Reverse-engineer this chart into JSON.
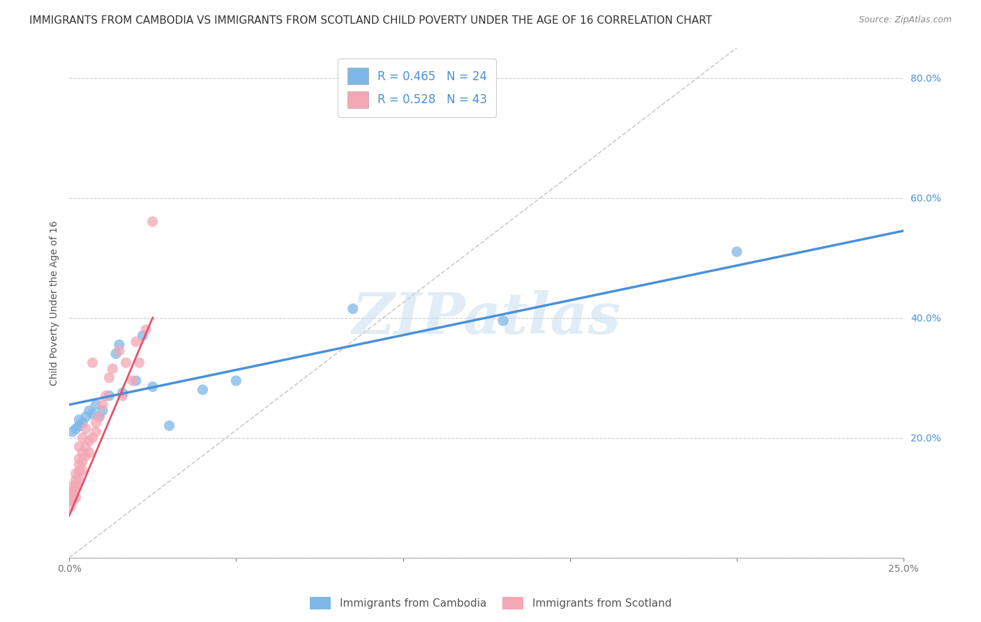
{
  "title": "IMMIGRANTS FROM CAMBODIA VS IMMIGRANTS FROM SCOTLAND CHILD POVERTY UNDER THE AGE OF 16 CORRELATION CHART",
  "source": "Source: ZipAtlas.com",
  "ylabel": "Child Poverty Under the Age of 16",
  "xlim": [
    0.0,
    0.25
  ],
  "ylim": [
    0.0,
    0.85
  ],
  "x_ticks": [
    0.0,
    0.05,
    0.1,
    0.15,
    0.2,
    0.25
  ],
  "x_tick_labels": [
    "0.0%",
    "",
    "",
    "",
    "",
    "25.0%"
  ],
  "y_ticks": [
    0.0,
    0.2,
    0.4,
    0.6,
    0.8
  ],
  "y_tick_labels": [
    "",
    "20.0%",
    "40.0%",
    "60.0%",
    "80.0%"
  ],
  "grid_color": "#cccccc",
  "background_color": "#ffffff",
  "watermark_text": "ZIPatlas",
  "cambodia_color": "#7eb8e8",
  "scotland_color": "#f4a7b5",
  "trend_cambodia_color": "#4a90d9",
  "trend_scotland_color": "#e8506a",
  "R_cambodia": 0.465,
  "N_cambodia": 24,
  "R_scotland": 0.528,
  "N_scotland": 43,
  "cambodia_scatter_x": [
    0.001,
    0.002,
    0.003,
    0.003,
    0.004,
    0.005,
    0.006,
    0.007,
    0.008,
    0.009,
    0.01,
    0.012,
    0.014,
    0.015,
    0.016,
    0.02,
    0.022,
    0.025,
    0.03,
    0.04,
    0.05,
    0.085,
    0.13,
    0.2
  ],
  "cambodia_scatter_y": [
    0.21,
    0.215,
    0.22,
    0.23,
    0.225,
    0.235,
    0.245,
    0.24,
    0.255,
    0.235,
    0.245,
    0.27,
    0.34,
    0.355,
    0.275,
    0.295,
    0.37,
    0.285,
    0.22,
    0.28,
    0.295,
    0.415,
    0.395,
    0.51
  ],
  "scotland_scatter_x": [
    0.0005,
    0.001,
    0.001,
    0.001,
    0.001,
    0.001,
    0.001,
    0.002,
    0.002,
    0.002,
    0.002,
    0.002,
    0.003,
    0.003,
    0.003,
    0.003,
    0.003,
    0.004,
    0.004,
    0.004,
    0.004,
    0.005,
    0.005,
    0.005,
    0.006,
    0.006,
    0.007,
    0.007,
    0.008,
    0.008,
    0.009,
    0.01,
    0.011,
    0.012,
    0.013,
    0.015,
    0.016,
    0.017,
    0.019,
    0.02,
    0.021,
    0.023,
    0.025
  ],
  "scotland_scatter_y": [
    0.085,
    0.095,
    0.1,
    0.11,
    0.1,
    0.11,
    0.12,
    0.1,
    0.115,
    0.12,
    0.13,
    0.14,
    0.13,
    0.145,
    0.155,
    0.165,
    0.185,
    0.145,
    0.16,
    0.175,
    0.2,
    0.17,
    0.185,
    0.215,
    0.175,
    0.195,
    0.2,
    0.325,
    0.21,
    0.225,
    0.235,
    0.255,
    0.27,
    0.3,
    0.315,
    0.345,
    0.27,
    0.325,
    0.295,
    0.36,
    0.325,
    0.38,
    0.56
  ],
  "legend_cambodia_label": "Immigrants from Cambodia",
  "legend_scotland_label": "Immigrants from Scotland",
  "title_fontsize": 11,
  "axis_label_fontsize": 10,
  "tick_label_fontsize": 10,
  "legend_fontsize": 12,
  "dot_size": 120,
  "trend_cam_x0": 0.0,
  "trend_cam_y0": 0.255,
  "trend_cam_x1": 0.25,
  "trend_cam_y1": 0.545,
  "trend_scot_x0": 0.0,
  "trend_scot_y0": 0.07,
  "trend_scot_x1": 0.025,
  "trend_scot_y1": 0.4
}
